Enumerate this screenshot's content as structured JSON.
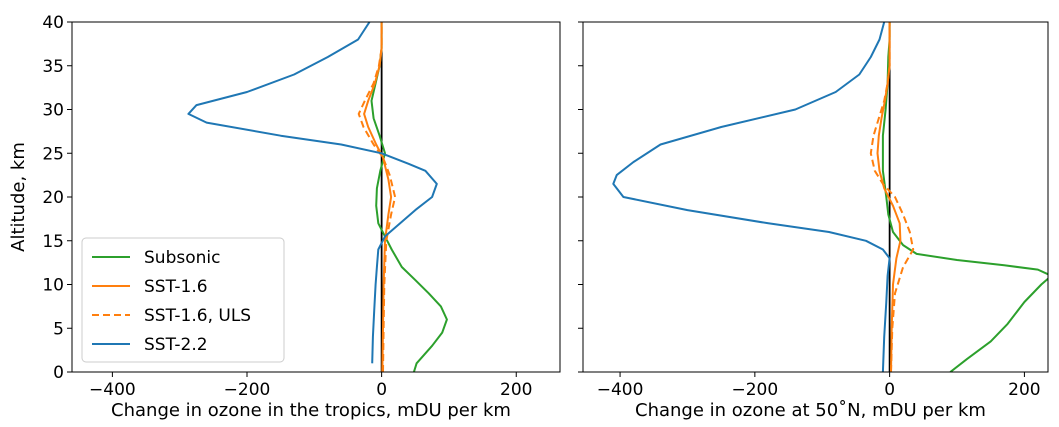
{
  "chart_data": [
    {
      "type": "line",
      "xlabel": "Change in ozone in the tropics, mDU per km",
      "ylabel": "Altitude, km",
      "xlim": [
        -460,
        265
      ],
      "ylim": [
        0,
        40
      ],
      "xticks": [
        -400,
        -200,
        0,
        200
      ],
      "yticks": [
        0,
        5,
        10,
        15,
        20,
        25,
        30,
        35,
        40
      ],
      "xtick_labels": [
        "−400",
        "−200",
        "0",
        "200"
      ],
      "ytick_labels": [
        "0",
        "5",
        "10",
        "15",
        "20",
        "25",
        "30",
        "35",
        "40"
      ],
      "zero_line": true,
      "legend_position": "lower-left",
      "series": [
        {
          "name": "Subsonic",
          "color": "#2ca02c",
          "dash": "solid",
          "points": [
            [
              48,
              0
            ],
            [
              52,
              1
            ],
            [
              75,
              3
            ],
            [
              90,
              4.5
            ],
            [
              97,
              6
            ],
            [
              88,
              7.5
            ],
            [
              70,
              9
            ],
            [
              50,
              10.5
            ],
            [
              30,
              12
            ],
            [
              15,
              14
            ],
            [
              5,
              15.5
            ],
            [
              -5,
              17
            ],
            [
              -8,
              19
            ],
            [
              -7,
              21
            ],
            [
              -2,
              23
            ],
            [
              5,
              25
            ],
            [
              -3,
              27
            ],
            [
              -12,
              29
            ],
            [
              -15,
              31
            ],
            [
              -9,
              33
            ],
            [
              -3,
              35
            ],
            [
              0,
              37
            ],
            [
              0,
              40
            ]
          ]
        },
        {
          "name": "SST-1.6",
          "color": "#ff7f0e",
          "dash": "solid",
          "points": [
            [
              1,
              0
            ],
            [
              2,
              5
            ],
            [
              3,
              10
            ],
            [
              5,
              15
            ],
            [
              10,
              18
            ],
            [
              14,
              20
            ],
            [
              10,
              22
            ],
            [
              2,
              24.5
            ],
            [
              -8,
              26
            ],
            [
              -20,
              28
            ],
            [
              -26,
              29.5
            ],
            [
              -20,
              31
            ],
            [
              -10,
              33
            ],
            [
              -3,
              35
            ],
            [
              0,
              37
            ],
            [
              0,
              40
            ]
          ]
        },
        {
          "name": "SST-1.6, ULS",
          "color": "#ff7f0e",
          "dash": "dashed",
          "points": [
            [
              2,
              0
            ],
            [
              3,
              5
            ],
            [
              4,
              10
            ],
            [
              7,
              15
            ],
            [
              14,
              18
            ],
            [
              20,
              20
            ],
            [
              12,
              22.5
            ],
            [
              2,
              24.5
            ],
            [
              -12,
              26
            ],
            [
              -27,
              28
            ],
            [
              -34,
              29.5
            ],
            [
              -25,
              31
            ],
            [
              -12,
              33
            ],
            [
              -4,
              35
            ],
            [
              0,
              37
            ],
            [
              0,
              40
            ]
          ]
        },
        {
          "name": "SST-2.2",
          "color": "#1f77b4",
          "dash": "solid",
          "points": [
            [
              -14,
              1
            ],
            [
              -13,
              4
            ],
            [
              -11,
              7
            ],
            [
              -9,
              10
            ],
            [
              -7,
              12
            ],
            [
              -5,
              14
            ],
            [
              5,
              15.5
            ],
            [
              20,
              16.5
            ],
            [
              50,
              18.5
            ],
            [
              75,
              20
            ],
            [
              82,
              21.5
            ],
            [
              65,
              23
            ],
            [
              40,
              23.8
            ],
            [
              0,
              25
            ],
            [
              -60,
              26
            ],
            [
              -150,
              27
            ],
            [
              -260,
              28.5
            ],
            [
              -287,
              29.5
            ],
            [
              -275,
              30.5
            ],
            [
              -200,
              32
            ],
            [
              -130,
              34
            ],
            [
              -80,
              36
            ],
            [
              -35,
              38
            ],
            [
              -18,
              40
            ]
          ]
        }
      ]
    },
    {
      "type": "line",
      "xlabel": "Change in ozone at 50˚N, mDU per km",
      "ylabel": "",
      "xlim": [
        -455,
        235
      ],
      "ylim": [
        0,
        40
      ],
      "xticks": [
        -400,
        -200,
        0,
        200
      ],
      "yticks": [
        0,
        5,
        10,
        15,
        20,
        25,
        30,
        35,
        40
      ],
      "xtick_labels": [
        "−400",
        "−200",
        "0",
        "200"
      ],
      "zero_line": true,
      "series": [
        {
          "name": "Subsonic",
          "color": "#2ca02c",
          "dash": "solid",
          "points": [
            [
              90,
              0
            ],
            [
              115,
              1.5
            ],
            [
              150,
              3.5
            ],
            [
              175,
              5.5
            ],
            [
              200,
              8
            ],
            [
              225,
              10
            ],
            [
              240,
              11
            ],
            [
              220,
              11.7
            ],
            [
              170,
              12.2
            ],
            [
              100,
              12.8
            ],
            [
              40,
              13.5
            ],
            [
              20,
              14.5
            ],
            [
              5,
              16
            ],
            [
              -2,
              18
            ],
            [
              -5,
              20
            ],
            [
              -10,
              23
            ],
            [
              -10,
              27
            ],
            [
              -6,
              30
            ],
            [
              -3,
              33
            ],
            [
              -2,
              36
            ],
            [
              0,
              38
            ],
            [
              0,
              40
            ]
          ]
        },
        {
          "name": "SST-1.6",
          "color": "#ff7f0e",
          "dash": "solid",
          "points": [
            [
              2,
              0
            ],
            [
              3,
              5
            ],
            [
              5,
              10
            ],
            [
              10,
              13
            ],
            [
              16,
              15
            ],
            [
              15,
              17
            ],
            [
              5,
              19
            ],
            [
              -8,
              21
            ],
            [
              -15,
              23
            ],
            [
              -18,
              25
            ],
            [
              -16,
              27
            ],
            [
              -12,
              29
            ],
            [
              -7,
              31
            ],
            [
              -3,
              33
            ],
            [
              0,
              35
            ],
            [
              0,
              40
            ]
          ]
        },
        {
          "name": "SST-1.6, ULS",
          "color": "#ff7f0e",
          "dash": "dashed",
          "points": [
            [
              2,
              0
            ],
            [
              4,
              5
            ],
            [
              8,
              9
            ],
            [
              20,
              12
            ],
            [
              35,
              14
            ],
            [
              30,
              16
            ],
            [
              20,
              18
            ],
            [
              8,
              20
            ],
            [
              -10,
              21.5
            ],
            [
              -22,
              23
            ],
            [
              -28,
              25
            ],
            [
              -24,
              27
            ],
            [
              -16,
              29
            ],
            [
              -8,
              31
            ],
            [
              -3,
              33
            ],
            [
              0,
              35
            ],
            [
              0,
              40
            ]
          ]
        },
        {
          "name": "SST-2.2",
          "color": "#1f77b4",
          "dash": "solid",
          "points": [
            [
              -10,
              0
            ],
            [
              -8,
              4
            ],
            [
              -5,
              8
            ],
            [
              -3,
              11
            ],
            [
              0,
              13
            ],
            [
              -10,
              14
            ],
            [
              -35,
              15
            ],
            [
              -90,
              16
            ],
            [
              -180,
              17
            ],
            [
              -300,
              18.5
            ],
            [
              -395,
              20
            ],
            [
              -410,
              21.5
            ],
            [
              -405,
              22.5
            ],
            [
              -380,
              24
            ],
            [
              -340,
              26
            ],
            [
              -250,
              28
            ],
            [
              -140,
              30
            ],
            [
              -80,
              32
            ],
            [
              -45,
              34
            ],
            [
              -28,
              36
            ],
            [
              -15,
              38
            ],
            [
              -8,
              40
            ]
          ]
        }
      ]
    }
  ],
  "legend": {
    "items": [
      {
        "label": "Subsonic",
        "color": "#2ca02c",
        "dash": "solid"
      },
      {
        "label": "SST-1.6",
        "color": "#ff7f0e",
        "dash": "solid"
      },
      {
        "label": "SST-1.6, ULS",
        "color": "#ff7f0e",
        "dash": "dashed"
      },
      {
        "label": "SST-2.2",
        "color": "#1f77b4",
        "dash": "solid"
      }
    ]
  }
}
